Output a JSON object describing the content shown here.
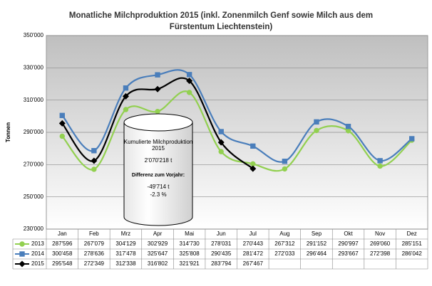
{
  "chart_data": {
    "type": "line",
    "title": [
      "Monatliche Milchproduktion 2015 (inkl. Zonenmilch Genf sowie Milch aus dem",
      "Fürstentum Liechtenstein)"
    ],
    "y_label": "Tonnen",
    "categories": [
      "Jan",
      "Feb",
      "Mrz",
      "Apr",
      "Mai",
      "Jun",
      "Jul",
      "Aug",
      "Sep",
      "Okt",
      "Nov",
      "Dez"
    ],
    "series": [
      {
        "name": "2013",
        "color": "#92d050",
        "marker": "circle",
        "values": [
          287596,
          267079,
          304129,
          302929,
          314730,
          278031,
          270443,
          267312,
          291152,
          290997,
          269060,
          285151
        ],
        "value_labels": [
          "287'596",
          "267'079",
          "304'129",
          "302'929",
          "314'730",
          "278'031",
          "270'443",
          "267'312",
          "291'152",
          "290'997",
          "269'060",
          "285'151"
        ]
      },
      {
        "name": "2014",
        "color": "#4a7ebb",
        "marker": "square",
        "values": [
          300458,
          278636,
          317478,
          325647,
          325808,
          290435,
          281472,
          272033,
          296464,
          293667,
          272398,
          286042
        ],
        "value_labels": [
          "300'458",
          "278'636",
          "317'478",
          "325'647",
          "325'808",
          "290'435",
          "281'472",
          "272'033",
          "296'464",
          "293'667",
          "272'398",
          "286'042"
        ]
      },
      {
        "name": "2015",
        "color": "#000000",
        "marker": "diamond",
        "values": [
          295548,
          272349,
          312338,
          316802,
          321921,
          283794,
          267467,
          null,
          null,
          null,
          null,
          null
        ],
        "value_labels": [
          "295'548",
          "272'349",
          "312'338",
          "316'802",
          "321'921",
          "283'794",
          "267'467",
          null,
          null,
          null,
          null,
          null
        ]
      }
    ],
    "ylim": [
      230000,
      350000
    ],
    "yticks": [
      {
        "value": 230000,
        "label": "230'000"
      },
      {
        "value": 250000,
        "label": "250'000"
      },
      {
        "value": 270000,
        "label": "270'000"
      },
      {
        "value": 290000,
        "label": "290'000"
      },
      {
        "value": 310000,
        "label": "310'000"
      },
      {
        "value": 330000,
        "label": "330'000"
      },
      {
        "value": 350000,
        "label": "350'000"
      }
    ],
    "grid": true,
    "annotations": [
      "Kumulierte Milchproduktion",
      "2015",
      "2'070'218 t",
      "Differenz zum Vorjahr:",
      "-49'714 t",
      "-2.3 %"
    ]
  }
}
